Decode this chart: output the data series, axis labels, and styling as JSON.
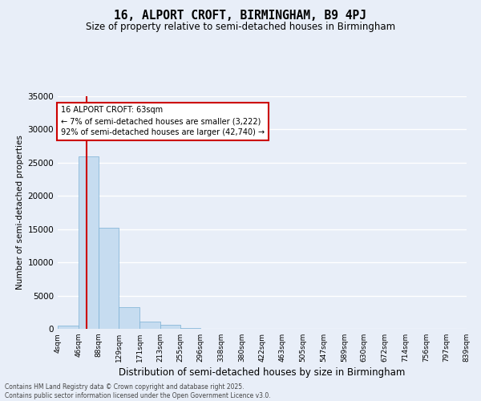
{
  "title": "16, ALPORT CROFT, BIRMINGHAM, B9 4PJ",
  "subtitle": "Size of property relative to semi-detached houses in Birmingham",
  "xlabel": "Distribution of semi-detached houses by size in Birmingham",
  "ylabel": "Number of semi-detached properties",
  "bin_labels": [
    "4sqm",
    "46sqm",
    "88sqm",
    "129sqm",
    "171sqm",
    "213sqm",
    "255sqm",
    "296sqm",
    "338sqm",
    "380sqm",
    "422sqm",
    "463sqm",
    "505sqm",
    "547sqm",
    "589sqm",
    "630sqm",
    "672sqm",
    "714sqm",
    "756sqm",
    "797sqm",
    "839sqm"
  ],
  "bin_edges": [
    4,
    46,
    88,
    129,
    171,
    213,
    255,
    296,
    338,
    380,
    422,
    463,
    505,
    547,
    589,
    630,
    672,
    714,
    756,
    797,
    839
  ],
  "bar_heights": [
    500,
    26000,
    15200,
    3300,
    1100,
    550,
    100,
    50,
    20,
    10,
    5,
    3,
    2,
    1,
    1,
    0,
    0,
    0,
    0,
    0
  ],
  "bar_color": "#c6dcf0",
  "bar_edge_color": "#7ab0d4",
  "ylim": [
    0,
    35000
  ],
  "yticks": [
    0,
    5000,
    10000,
    15000,
    20000,
    25000,
    30000,
    35000
  ],
  "property_size": 63,
  "property_line_color": "#cc0000",
  "annotation_title": "16 ALPORT CROFT: 63sqm",
  "annotation_line1": "← 7% of semi-detached houses are smaller (3,222)",
  "annotation_line2": "92% of semi-detached houses are larger (42,740) →",
  "annotation_box_color": "#ffffff",
  "annotation_box_edge": "#cc0000",
  "background_color": "#e8eef8",
  "grid_color": "#ffffff",
  "footer_line1": "Contains HM Land Registry data © Crown copyright and database right 2025.",
  "footer_line2": "Contains public sector information licensed under the Open Government Licence v3.0."
}
